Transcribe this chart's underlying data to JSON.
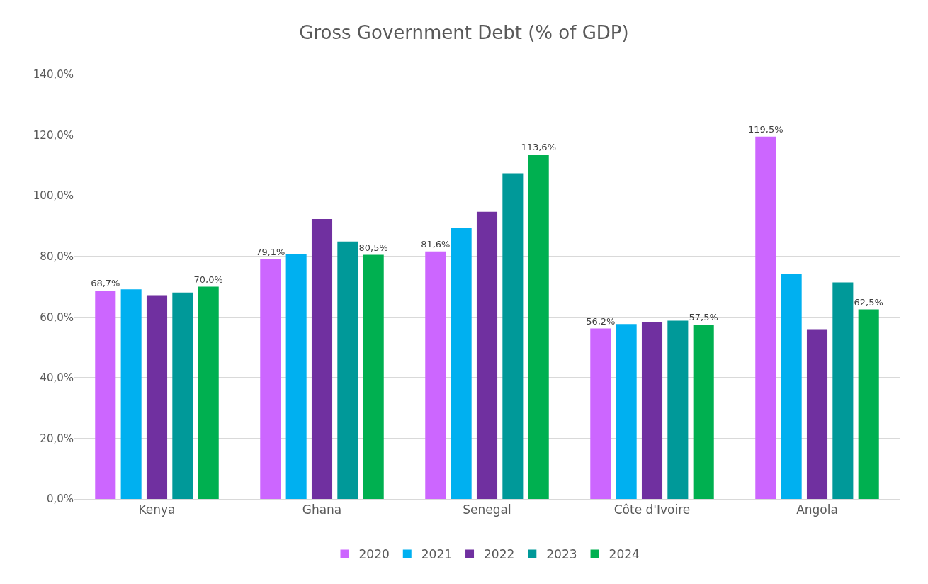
{
  "chart_data": {
    "type": "bar",
    "title": "Gross Government Debt (% of GDP)",
    "categories": [
      "Kenya",
      "Ghana",
      "Senegal",
      "Côte d'Ivoire",
      "Angola"
    ],
    "series": [
      {
        "name": "2020",
        "color": "#cc66ff",
        "values": [
          68.7,
          79.1,
          81.6,
          56.2,
          119.5
        ],
        "value_labels": [
          "68,7%",
          "79,1%",
          "81,6%",
          "56,2%",
          "119,5%"
        ]
      },
      {
        "name": "2021",
        "color": "#00b0f0",
        "values": [
          69.1,
          80.7,
          89.3,
          57.7,
          74.2
        ]
      },
      {
        "name": "2022",
        "color": "#7030a0",
        "values": [
          67.2,
          92.3,
          94.7,
          58.4,
          56.0
        ]
      },
      {
        "name": "2023",
        "color": "#009999",
        "values": [
          68.1,
          84.9,
          107.4,
          58.8,
          71.4
        ]
      },
      {
        "name": "2024",
        "color": "#00b050",
        "values": [
          70.0,
          80.5,
          113.6,
          57.5,
          62.5
        ],
        "value_labels": [
          "70,0%",
          "80,5%",
          "113,6%",
          "57,5%",
          "62,5%"
        ]
      }
    ],
    "ylim": [
      0,
      140
    ],
    "yticks": [
      {
        "value": 0,
        "label": "0,0%"
      },
      {
        "value": 20,
        "label": "20,0%"
      },
      {
        "value": 40,
        "label": "40,0%"
      },
      {
        "value": 60,
        "label": "60,0%"
      },
      {
        "value": 80,
        "label": "80,0%"
      },
      {
        "value": 100,
        "label": "100,0%"
      },
      {
        "value": 120,
        "label": "120,0%"
      },
      {
        "value": 140,
        "label": "140,0%"
      }
    ],
    "grid": "y",
    "legend": "bottom"
  }
}
